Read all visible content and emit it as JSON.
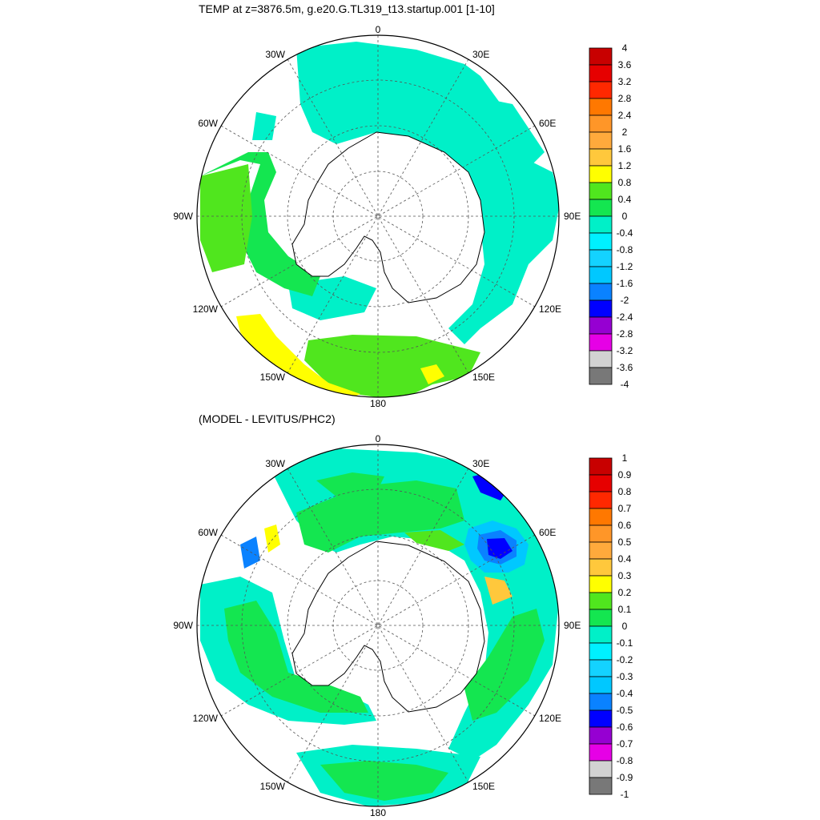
{
  "panel1": {
    "title": "TEMP at z=3876.5m, g.e20.G.TL319_t13.startup.001 [1-10]",
    "lon_labels": [
      "0",
      "30E",
      "60E",
      "90E",
      "120E",
      "150E",
      "180",
      "150W",
      "120W",
      "90W",
      "60W",
      "30W"
    ],
    "colorbar": {
      "labels": [
        "4",
        "3.6",
        "3.2",
        "2.8",
        "2.4",
        "2",
        "1.6",
        "1.2",
        "0.8",
        "0.4",
        "0",
        "-0.4",
        "-0.8",
        "-1.2",
        "-1.6",
        "-2",
        "-2.4",
        "-2.8",
        "-3.2",
        "-3.6",
        "-4"
      ],
      "colors": [
        "#c80000",
        "#e60000",
        "#ff2800",
        "#ff7800",
        "#ff9628",
        "#ffaa3c",
        "#ffc83c",
        "#ffff00",
        "#50e61e",
        "#14e650",
        "#00f0c8",
        "#00f0ff",
        "#14d2ff",
        "#00c8ff",
        "#0a82ff",
        "#0000ff",
        "#9600d2",
        "#e600e6",
        "#d2d2d2",
        "#787878"
      ]
    }
  },
  "panel2": {
    "title": "(MODEL - LEVITUS/PHC2)",
    "lon_labels": [
      "0",
      "30E",
      "60E",
      "90E",
      "120E",
      "150E",
      "180",
      "150W",
      "120W",
      "90W",
      "60W",
      "30W"
    ],
    "colorbar": {
      "labels": [
        "1",
        "0.9",
        "0.8",
        "0.7",
        "0.6",
        "0.5",
        "0.4",
        "0.3",
        "0.2",
        "0.1",
        "0",
        "-0.1",
        "-0.2",
        "-0.3",
        "-0.4",
        "-0.5",
        "-0.6",
        "-0.7",
        "-0.8",
        "-0.9",
        "-1"
      ],
      "colors": [
        "#c80000",
        "#e60000",
        "#ff2800",
        "#ff7800",
        "#ff9628",
        "#ffaa3c",
        "#ffc83c",
        "#ffff00",
        "#50e61e",
        "#14e650",
        "#00f0c8",
        "#00f0ff",
        "#14d2ff",
        "#00c8ff",
        "#0a82ff",
        "#0000ff",
        "#9600d2",
        "#e600e6",
        "#d2d2d2",
        "#787878"
      ]
    }
  },
  "colors": {
    "land": "#ffffff",
    "coast": "#000000",
    "grid": "#555555"
  }
}
